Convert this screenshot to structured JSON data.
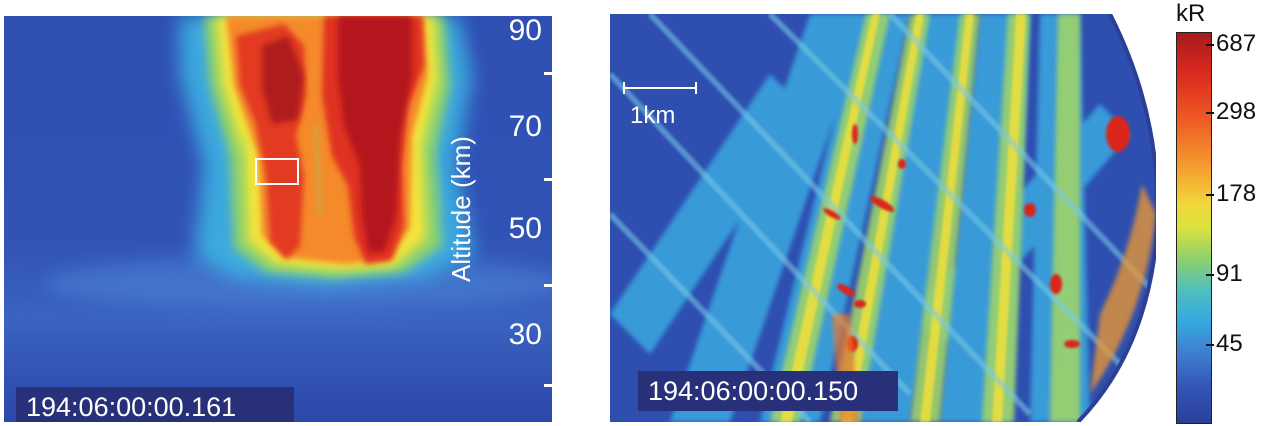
{
  "left_panel": {
    "timestamp": "194:06:00:00.161",
    "altitude_axis": {
      "label": "Altitude (km)",
      "ticks": [
        "90",
        "70",
        "50",
        "30"
      ]
    }
  },
  "right_panel": {
    "timestamp": "194:06:00:00.150",
    "scale_bar": "1km"
  },
  "colorbar": {
    "unit": "kR",
    "ticks": [
      "687",
      "298",
      "178",
      "91",
      "45"
    ]
  }
}
